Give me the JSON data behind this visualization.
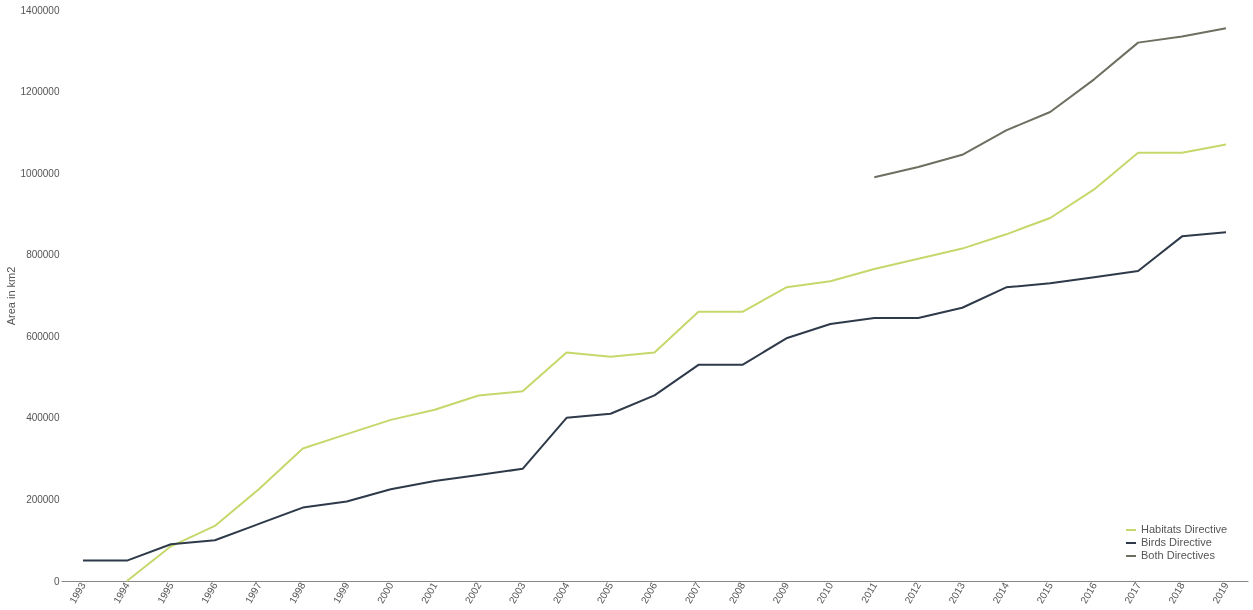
{
  "chart_data": {
    "type": "line",
    "ylabel": "Area in km2",
    "categories": [
      "1993",
      "1994",
      "1995",
      "1996",
      "1997",
      "1998",
      "1999",
      "2000",
      "2001",
      "2002",
      "2003",
      "2004",
      "2005",
      "2006",
      "2007",
      "2008",
      "2009",
      "2010",
      "2011",
      "2012",
      "2013",
      "2014",
      "2015",
      "2016",
      "2017",
      "2018",
      "2019"
    ],
    "series": [
      {
        "name": "Habitats Directive",
        "color": "#c6d86b",
        "values": [
          null,
          0,
          85000,
          135000,
          225000,
          325000,
          360000,
          395000,
          420000,
          455000,
          465000,
          560000,
          550000,
          560000,
          660000,
          660000,
          720000,
          735000,
          765000,
          790000,
          815000,
          850000,
          890000,
          960000,
          1050000,
          1050000,
          1070000
        ]
      },
      {
        "name": "Birds Directive",
        "color": "#2e3a4a",
        "values": [
          50000,
          50000,
          90000,
          100000,
          140000,
          180000,
          195000,
          225000,
          245000,
          260000,
          275000,
          400000,
          410000,
          455000,
          530000,
          530000,
          595000,
          630000,
          645000,
          645000,
          670000,
          720000,
          730000,
          745000,
          760000,
          845000,
          855000
        ]
      },
      {
        "name": "Both Directives",
        "color": "#6b7060",
        "values": [
          null,
          null,
          null,
          null,
          null,
          null,
          null,
          null,
          null,
          null,
          null,
          null,
          null,
          null,
          null,
          null,
          null,
          null,
          990000,
          1015000,
          1045000,
          1105000,
          1150000,
          1230000,
          1320000,
          1335000,
          1355000
        ]
      }
    ],
    "ylim": [
      0,
      1400000
    ],
    "yticks": [
      0,
      200000,
      400000,
      600000,
      800000,
      1000000,
      1200000,
      1400000
    ],
    "grid": false,
    "legend": "bottom right",
    "marker": "none",
    "line_style": "solid"
  }
}
